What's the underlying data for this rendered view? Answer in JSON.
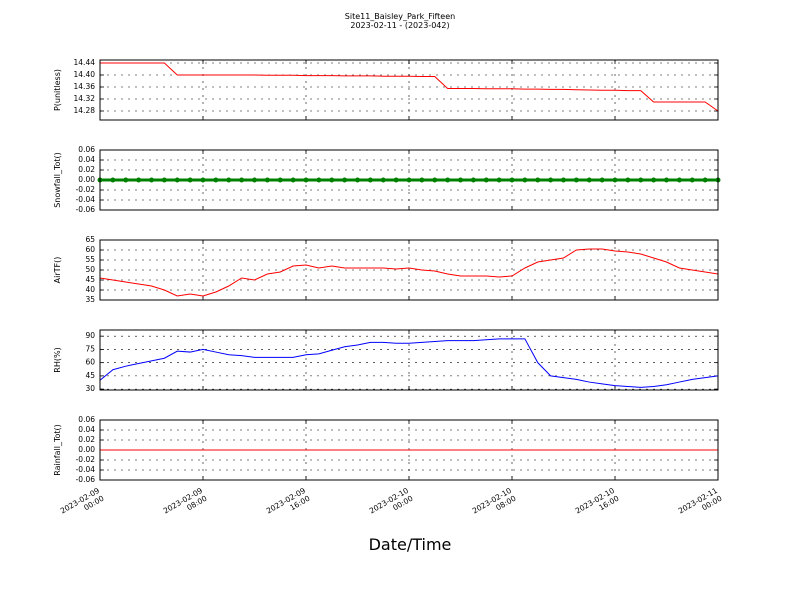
{
  "title": "Site11_Baisley_Park_Fifteen",
  "subtitle": "2023-02-11 - (2023-042)",
  "xlabel": "Date/Time",
  "xlim": [
    "2023-02-09 00:00",
    "2023-02-11 00:00"
  ],
  "xticks": [
    "2023-02-09 00:00",
    "2023-02-09 08:00",
    "2023-02-09 16:00",
    "2023-02-10 00:00",
    "2023-02-10 08:00",
    "2023-02-10 16:00",
    "2023-02-11 00:00"
  ],
  "x": [
    "2023-02-09 00:00",
    "2023-02-09 01:00",
    "2023-02-09 02:00",
    "2023-02-09 03:00",
    "2023-02-09 04:00",
    "2023-02-09 05:00",
    "2023-02-09 06:00",
    "2023-02-09 07:00",
    "2023-02-09 08:00",
    "2023-02-09 09:00",
    "2023-02-09 10:00",
    "2023-02-09 11:00",
    "2023-02-09 12:00",
    "2023-02-09 13:00",
    "2023-02-09 14:00",
    "2023-02-09 15:00",
    "2023-02-09 16:00",
    "2023-02-09 17:00",
    "2023-02-09 18:00",
    "2023-02-09 19:00",
    "2023-02-09 20:00",
    "2023-02-09 21:00",
    "2023-02-09 22:00",
    "2023-02-09 23:00",
    "2023-02-10 00:00",
    "2023-02-10 01:00",
    "2023-02-10 02:00",
    "2023-02-10 03:00",
    "2023-02-10 04:00",
    "2023-02-10 05:00",
    "2023-02-10 06:00",
    "2023-02-10 07:00",
    "2023-02-10 08:00",
    "2023-02-10 09:00",
    "2023-02-10 10:00",
    "2023-02-10 11:00",
    "2023-02-10 12:00",
    "2023-02-10 13:00",
    "2023-02-10 14:00",
    "2023-02-10 15:00",
    "2023-02-10 16:00",
    "2023-02-10 17:00",
    "2023-02-10 18:00",
    "2023-02-10 19:00",
    "2023-02-10 20:00",
    "2023-02-10 21:00",
    "2023-02-10 22:00",
    "2023-02-10 23:00",
    "2023-02-11 00:00"
  ],
  "chart_data": [
    {
      "type": "line",
      "ylabel": "P(unitless)",
      "color": "#ff0000",
      "grid": true,
      "ylim": [
        14.25,
        14.45
      ],
      "yticks": [
        {
          "value": 14.28,
          "label": "14.28"
        },
        {
          "value": 14.32,
          "label": "14.32"
        },
        {
          "value": 14.36,
          "label": "14.36"
        },
        {
          "value": 14.4,
          "label": "14.40"
        },
        {
          "value": 14.44,
          "label": "14.44"
        }
      ],
      "values": [
        14.44,
        14.44,
        14.44,
        14.44,
        14.44,
        14.44,
        14.4,
        14.4,
        14.4,
        14.4,
        14.4,
        14.4,
        14.4,
        14.399,
        14.399,
        14.399,
        14.398,
        14.398,
        14.398,
        14.397,
        14.397,
        14.397,
        14.396,
        14.396,
        14.396,
        14.395,
        14.395,
        14.355,
        14.355,
        14.355,
        14.354,
        14.354,
        14.354,
        14.353,
        14.353,
        14.352,
        14.352,
        14.351,
        14.35,
        14.349,
        14.349,
        14.348,
        14.348,
        14.31,
        14.31,
        14.31,
        14.31,
        14.31,
        14.28
      ]
    },
    {
      "type": "line",
      "ylabel": "Snowfall_Tot()",
      "color": "#008000",
      "grid": true,
      "marker": true,
      "ylim": [
        -0.06,
        0.06
      ],
      "yticks": [
        -0.06,
        -0.04,
        -0.02,
        {
          "value": 0,
          "label": "0.00"
        },
        0.02,
        0.04,
        0.06
      ],
      "values": [
        0,
        0,
        0,
        0,
        0,
        0,
        0,
        0,
        0,
        0,
        0,
        0,
        0,
        0,
        0,
        0,
        0,
        0,
        0,
        0,
        0,
        0,
        0,
        0,
        0,
        0,
        0,
        0,
        0,
        0,
        0,
        0,
        0,
        0,
        0,
        0,
        0,
        0,
        0,
        0,
        0,
        0,
        0,
        0,
        0,
        0,
        0,
        0,
        0
      ]
    },
    {
      "type": "line",
      "ylabel": "AirTF()",
      "color": "#ff0000",
      "grid": true,
      "ylim": [
        35,
        65
      ],
      "yticks": [
        35,
        40,
        45,
        50,
        55,
        60,
        65
      ],
      "values": [
        46,
        45,
        44,
        43,
        42,
        40,
        37,
        38,
        37,
        39,
        42,
        46,
        45,
        48,
        49,
        52,
        52.5,
        51,
        52,
        51,
        51,
        51,
        51,
        50.5,
        51,
        50,
        49.5,
        48,
        47,
        47,
        47,
        46.5,
        47,
        51,
        54,
        55,
        56,
        60,
        60.5,
        60.5,
        59.5,
        59,
        58,
        56,
        54,
        51,
        50,
        49,
        48
      ]
    },
    {
      "type": "line",
      "ylabel": "RH(%)",
      "color": "#0000ff",
      "grid": true,
      "ylim": [
        29,
        97
      ],
      "yticks": [
        30,
        45,
        60,
        75,
        90
      ],
      "values": [
        40,
        52,
        56,
        59,
        62,
        65,
        73,
        72,
        75,
        72,
        69,
        68,
        66,
        66,
        66,
        66,
        69,
        70,
        74,
        78,
        80,
        83,
        83,
        82,
        82,
        83,
        84,
        85,
        85,
        85,
        86,
        87,
        87,
        87,
        60,
        45,
        43,
        41,
        38,
        36,
        34,
        33,
        32,
        33,
        35,
        38,
        41,
        43,
        45
      ]
    },
    {
      "type": "line",
      "ylabel": "Rainfall_Tot()",
      "color": "#ff0000",
      "grid": true,
      "ylim": [
        -0.06,
        0.06
      ],
      "yticks": [
        -0.06,
        -0.04,
        -0.02,
        {
          "value": 0,
          "label": "0.00"
        },
        0.02,
        0.04,
        0.06
      ],
      "values": [
        0,
        0,
        0,
        0,
        0,
        0,
        0,
        0,
        0,
        0,
        0,
        0,
        0,
        0,
        0,
        0,
        0,
        0,
        0,
        0,
        0,
        0,
        0,
        0,
        0,
        0,
        0,
        0,
        0,
        0,
        0,
        0,
        0,
        0,
        0,
        0,
        0,
        0,
        0,
        0,
        0,
        0,
        0,
        0,
        0,
        0,
        0,
        0,
        0
      ]
    }
  ]
}
